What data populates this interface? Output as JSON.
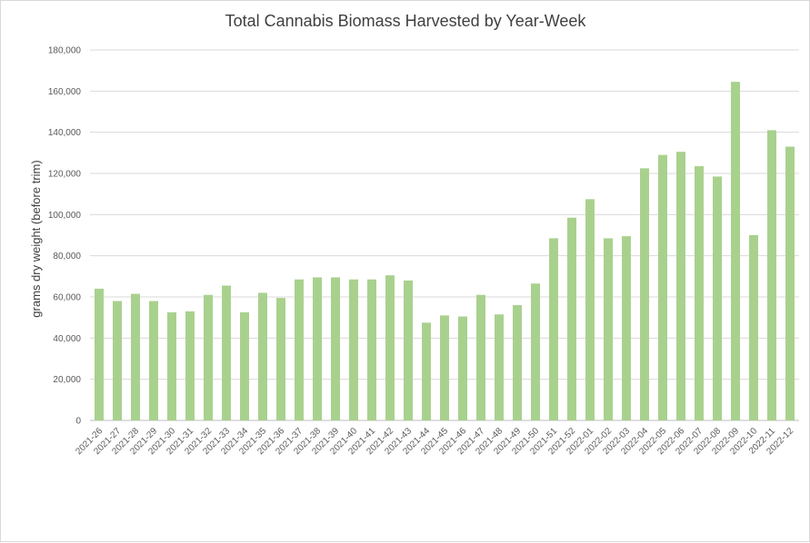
{
  "chart_data": {
    "type": "bar",
    "title": "Total Cannabis Biomass Harvested by Year-Week",
    "xlabel": "",
    "ylabel": "grams dry weight (before trim)",
    "ylim": [
      0,
      180000
    ],
    "yticks": [
      0,
      20000,
      40000,
      60000,
      80000,
      100000,
      120000,
      140000,
      160000,
      180000
    ],
    "ytick_labels": [
      "0",
      "20,000",
      "40,000",
      "60,000",
      "80,000",
      "100,000",
      "120,000",
      "140,000",
      "160,000",
      "180,000"
    ],
    "grid": true,
    "legend": "none",
    "bar_color": "#a9d18e",
    "categories": [
      "2021-26",
      "2021-27",
      "2021-28",
      "2021-29",
      "2021-30",
      "2021-31",
      "2021-32",
      "2021-33",
      "2021-34",
      "2021-35",
      "2021-36",
      "2021-37",
      "2021-38",
      "2021-39",
      "2021-40",
      "2021-41",
      "2021-42",
      "2021-43",
      "2021-44",
      "2021-45",
      "2021-46",
      "2021-47",
      "2021-48",
      "2021-49",
      "2021-50",
      "2021-51",
      "2021-52",
      "2022-01",
      "2022-02",
      "2022-03",
      "2022-04",
      "2022-05",
      "2022-06",
      "2022-07",
      "2022-08",
      "2022-09",
      "2022-10",
      "2022-11",
      "2022-12"
    ],
    "values": [
      64000,
      58000,
      61500,
      58000,
      52500,
      53000,
      61000,
      65500,
      52500,
      62000,
      59500,
      68500,
      69500,
      69500,
      68500,
      68500,
      70500,
      68000,
      47500,
      51000,
      50500,
      61000,
      51500,
      56000,
      66500,
      88500,
      98500,
      107500,
      88500,
      89500,
      122500,
      129000,
      130500,
      123500,
      118500,
      164500,
      90000,
      141000,
      133000
    ]
  }
}
